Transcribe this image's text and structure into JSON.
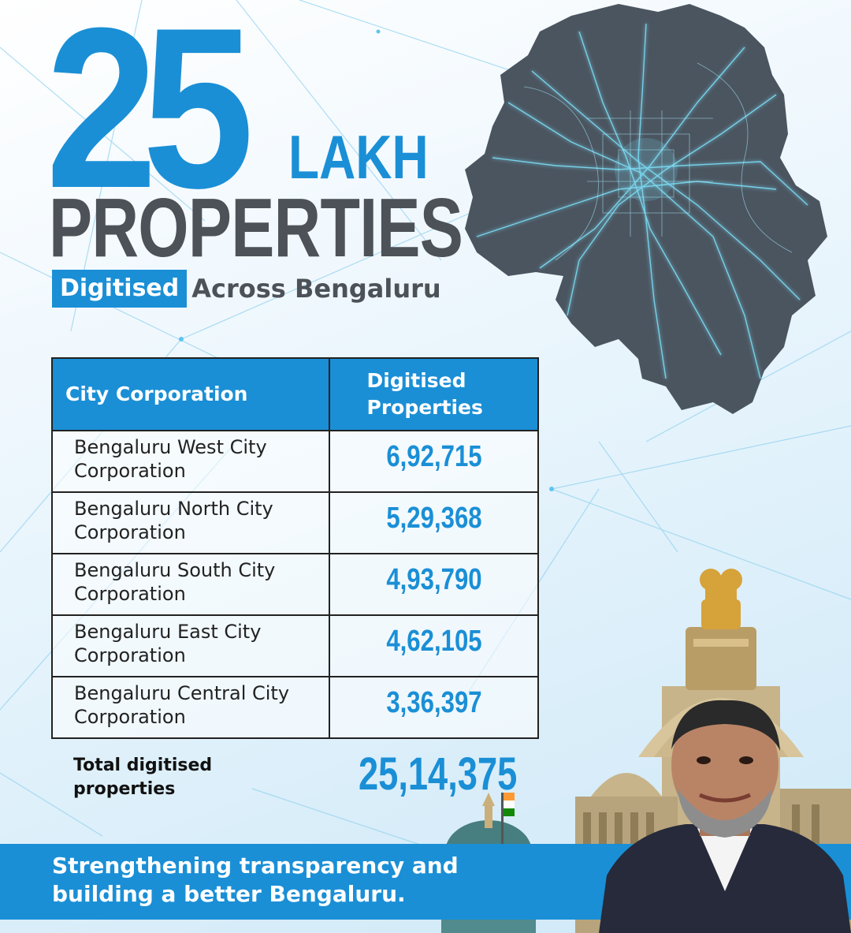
{
  "headline": {
    "number": "25",
    "unit": "LAKH",
    "noun": "PROPERTIES",
    "badge": "Digitised",
    "rest": "Across Bengaluru"
  },
  "table": {
    "headers": [
      "City Corporation",
      "Digitised Properties"
    ],
    "rows": [
      {
        "corporation": "Bengaluru West City Corporation",
        "value": "6,92,715"
      },
      {
        "corporation": "Bengaluru North City Corporation",
        "value": "5,29,368"
      },
      {
        "corporation": "Bengaluru South City Corporation",
        "value": "4,93,790"
      },
      {
        "corporation": "Bengaluru East City Corporation",
        "value": "4,62,105"
      },
      {
        "corporation": "Bengaluru Central City Corporation",
        "value": "3,36,397"
      }
    ],
    "total_label": "Total digitised properties",
    "total_value": "25,14,375"
  },
  "footer": {
    "tagline": "Strengthening transparency and building a better Bengaluru."
  },
  "colors": {
    "accent": "#1a8fd6",
    "text_dark": "#4d5158",
    "map": "#4b5560",
    "map_glow": "#6fe0ff"
  },
  "icons": [
    "bengaluru-map",
    "vidhana-soudha-building",
    "person-portrait",
    "national-emblem"
  ]
}
